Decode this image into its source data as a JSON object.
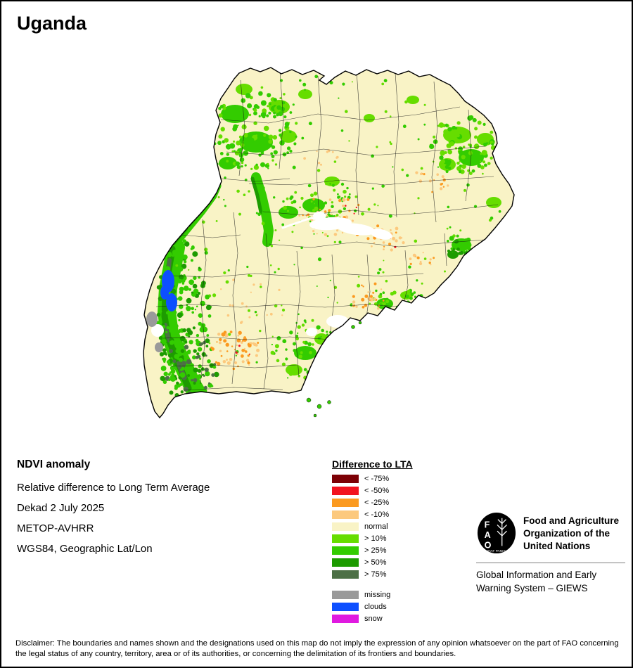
{
  "page": {
    "title": "Uganda",
    "disclaimer": "Disclaimer: The boundaries and names shown and the designations used on this map do not imply the expression of any opinion whatsoever on the part of FAO concerning the legal status of any country, territory, area or of its authorities, or concerning the delimitation of its frontiers and boundaries."
  },
  "info": {
    "heading": "NDVI anomaly",
    "lines": [
      "Relative difference to Long Term Average",
      "Dekad 2 July 2025",
      "METOP-AVHRR",
      "WGS84, Geographic Lat/Lon"
    ]
  },
  "legend": {
    "title": "Difference to LTA",
    "items": [
      {
        "label": "< -75%",
        "color": "#7d0005"
      },
      {
        "label": "< -50%",
        "color": "#f2131f"
      },
      {
        "label": "< -25%",
        "color": "#fb9a20"
      },
      {
        "label": "< -10%",
        "color": "#fcc97e"
      },
      {
        "label": "normal",
        "color": "#f9f3c6"
      },
      {
        "label": "> 10%",
        "color": "#66dd00"
      },
      {
        "label": "> 25%",
        "color": "#33cc00"
      },
      {
        "label": "> 50%",
        "color": "#1d9b00"
      },
      {
        "label": "> 75%",
        "color": "#4d7046"
      }
    ],
    "extra_items": [
      {
        "label": "missing",
        "color": "#9a9a9a"
      },
      {
        "label": "clouds",
        "color": "#0d4fff"
      },
      {
        "label": "snow",
        "color": "#e01ae0"
      }
    ]
  },
  "footer": {
    "org_name": "Food and Agriculture Organization of the United Nations",
    "giews_name": "Global Information and Early Warning System – GIEWS",
    "logo_letters": [
      "F",
      "A",
      "O"
    ],
    "logo_motto": "FIAT PANIS"
  }
}
